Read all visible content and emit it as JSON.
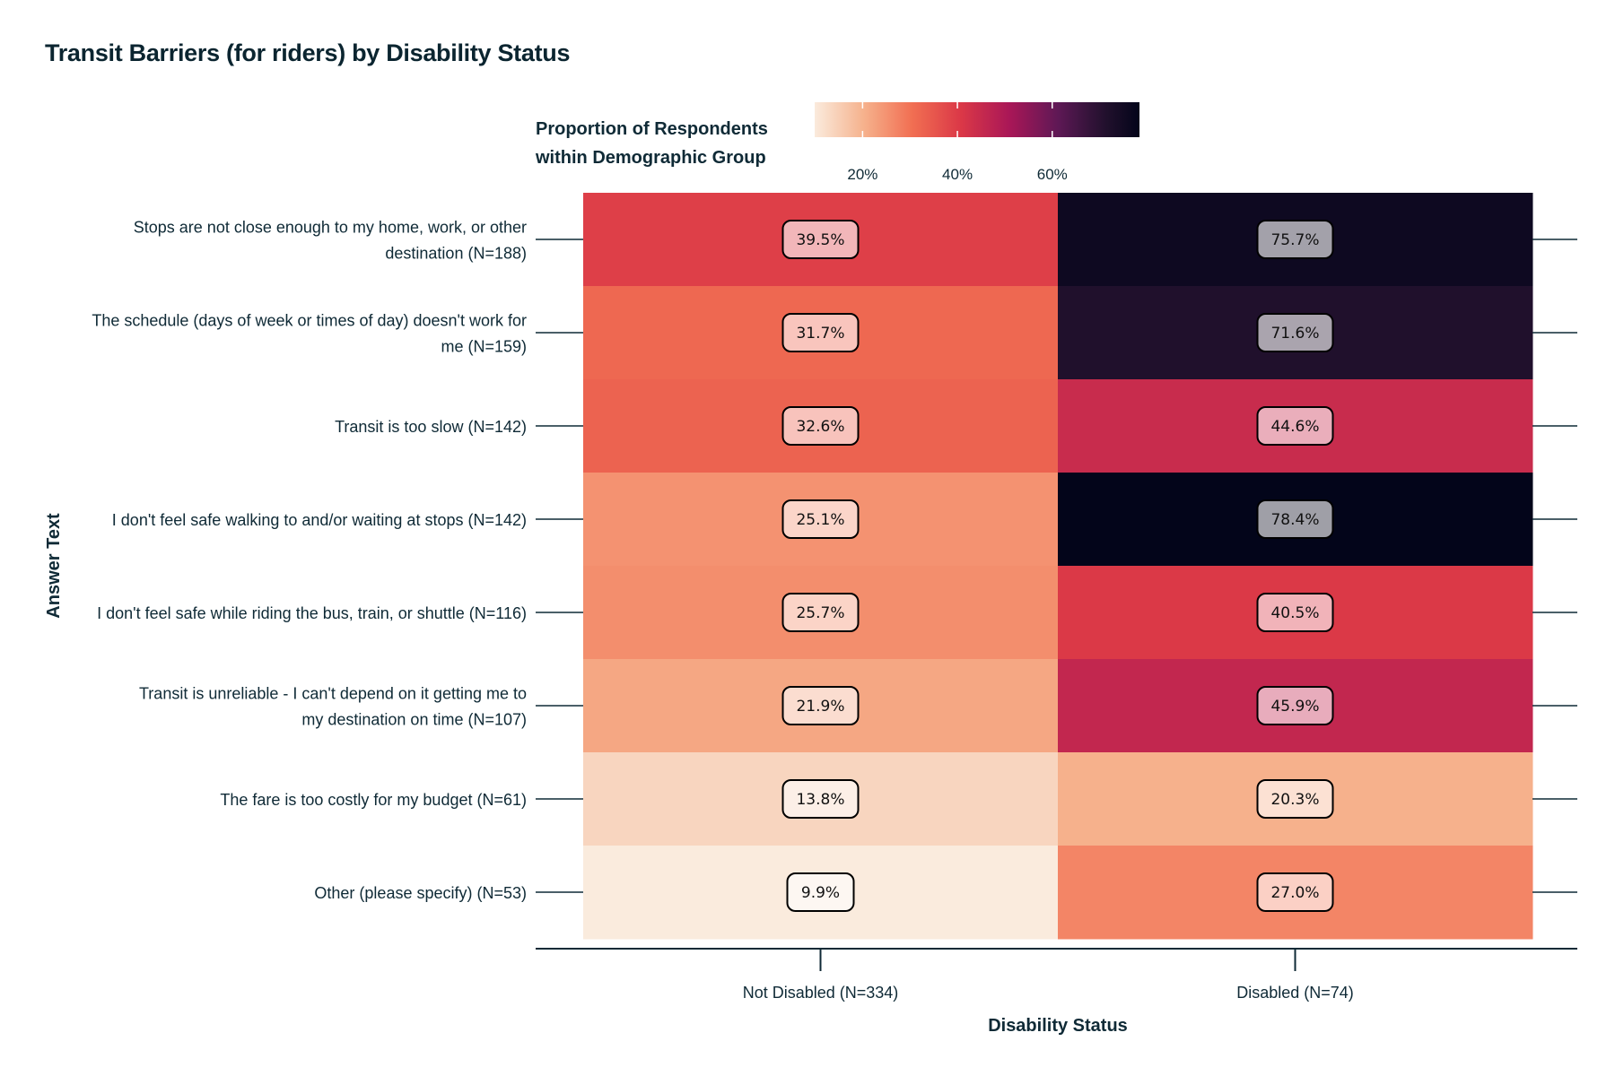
{
  "title": "Transit Barriers (for riders) by Disability Status",
  "chart_data": {
    "type": "heatmap",
    "title": "Transit Barriers (for riders) by Disability Status",
    "xlabel": "Disability Status",
    "ylabel": "Answer Text",
    "legend": {
      "title_lines": [
        "Proportion of Respondents",
        "within Demographic Group"
      ],
      "ticks": [
        "20%",
        "40%",
        "60%"
      ],
      "tick_values": [
        20,
        40,
        60
      ],
      "range": [
        9.9,
        78.4
      ],
      "placement": "top"
    },
    "x_categories": [
      "Not Disabled (N=334)",
      "Disabled (N=74)"
    ],
    "y_categories": [
      [
        "Stops are not close enough to my home, work, or other",
        "destination (N=188)"
      ],
      [
        "The schedule (days of week or times of day) doesn't work for",
        "me (N=159)"
      ],
      [
        "Transit is too slow (N=142)"
      ],
      [
        "I don't feel safe walking to and/or waiting at stops (N=142)"
      ],
      [
        "I don't feel safe while riding the bus, train, or shuttle (N=116)"
      ],
      [
        "Transit is unreliable - I can't depend on it getting me to",
        "my destination on time (N=107)"
      ],
      [
        "The fare is too costly for my budget (N=61)"
      ],
      [
        "Other (please specify) (N=53)"
      ]
    ],
    "values": [
      [
        39.5,
        75.7
      ],
      [
        31.7,
        71.6
      ],
      [
        32.6,
        44.6
      ],
      [
        25.1,
        78.4
      ],
      [
        25.7,
        40.5
      ],
      [
        21.9,
        45.9
      ],
      [
        13.8,
        20.3
      ],
      [
        9.9,
        27.0
      ]
    ],
    "labels": [
      [
        "39.5%",
        "75.7%"
      ],
      [
        "31.7%",
        "71.6%"
      ],
      [
        "32.6%",
        "44.6%"
      ],
      [
        "25.1%",
        "78.4%"
      ],
      [
        "25.7%",
        "40.5%"
      ],
      [
        "21.9%",
        "45.9%"
      ],
      [
        "13.8%",
        "20.3%"
      ],
      [
        "9.9%",
        "27.0%"
      ]
    ],
    "colormap": "rocket_r",
    "colors": {
      "text": "#0f2a36",
      "axis_line": "#0f2a36"
    }
  }
}
